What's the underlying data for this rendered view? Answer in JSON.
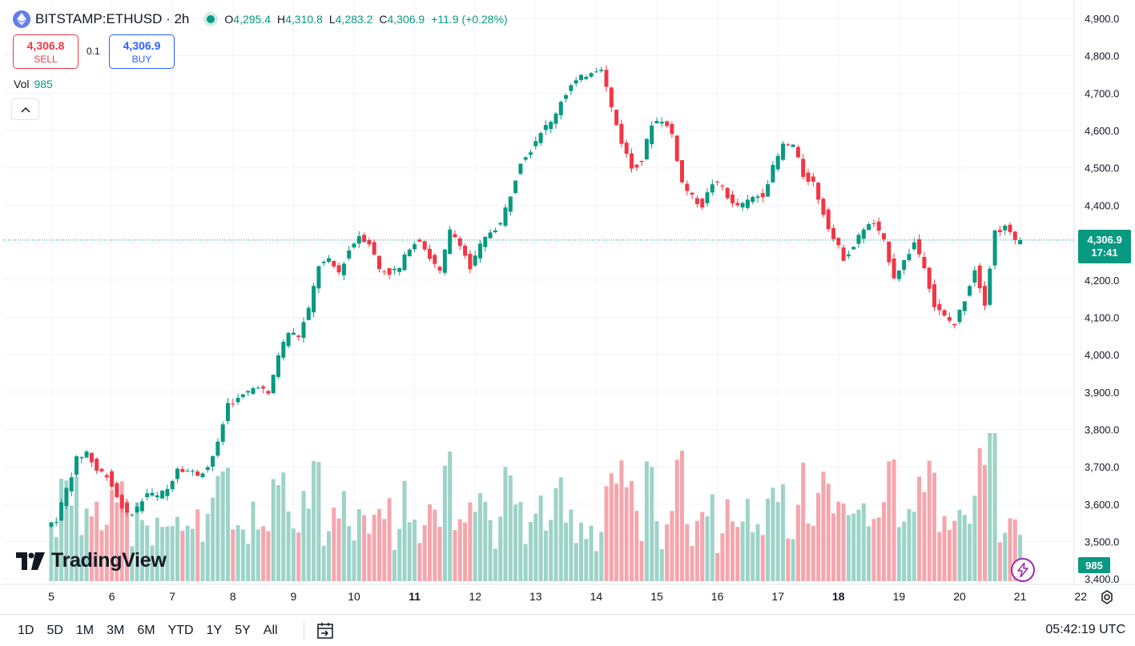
{
  "header": {
    "symbol": "BITSTAMP:ETHUSD · 2h",
    "open_label": "O",
    "open": "4,295.4",
    "high_label": "H",
    "high": "4,310.8",
    "low_label": "L",
    "low": "4,283.2",
    "close_label": "C",
    "close": "4,306.9",
    "change": "+11.9 (+0.28%)"
  },
  "trade": {
    "sell_price": "4,306.8",
    "sell_label": "SELL",
    "qty": "0.1",
    "buy_price": "4,306.9",
    "buy_label": "BUY"
  },
  "volume_legend": {
    "label": "Vol",
    "value": "985"
  },
  "brand": "TradingView",
  "price_tag": {
    "price": "4,306.9",
    "countdown": "17:41"
  },
  "volume_tag": "985",
  "time_ranges": [
    "1D",
    "5D",
    "1M",
    "3M",
    "6M",
    "YTD",
    "1Y",
    "5Y",
    "All"
  ],
  "clock": "05:42:19 UTC",
  "colors": {
    "up": "#089981",
    "down": "#f23645",
    "up_vol": "#9dd3c8",
    "down_vol": "#f5a6ad",
    "grid": "#f0f3fa",
    "text": "#131722"
  },
  "chart_data": {
    "type": "candlestick",
    "symbol": "BITSTAMP:ETHUSD",
    "interval": "2h",
    "y_ticks": [
      "4,900.0",
      "4,800.0",
      "4,700.0",
      "4,600.0",
      "4,500.0",
      "4,400.0",
      "4,300.0",
      "4,200.0",
      "4,100.0",
      "4,000.0",
      "3,900.0",
      "3,800.0",
      "3,700.0",
      "3,600.0",
      "3,500.0",
      "3,400.0"
    ],
    "y_range": [
      3400,
      4900
    ],
    "x_ticks": [
      {
        "label": "5",
        "hour": 0,
        "bold": false
      },
      {
        "label": "6",
        "hour": 24,
        "bold": false
      },
      {
        "label": "7",
        "hour": 48,
        "bold": false
      },
      {
        "label": "8",
        "hour": 72,
        "bold": false
      },
      {
        "label": "9",
        "hour": 96,
        "bold": false
      },
      {
        "label": "10",
        "hour": 120,
        "bold": false
      },
      {
        "label": "11",
        "hour": 144,
        "bold": true
      },
      {
        "label": "12",
        "hour": 168,
        "bold": false
      },
      {
        "label": "13",
        "hour": 192,
        "bold": false
      },
      {
        "label": "14",
        "hour": 216,
        "bold": false
      },
      {
        "label": "15",
        "hour": 240,
        "bold": false
      },
      {
        "label": "16",
        "hour": 264,
        "bold": false
      },
      {
        "label": "17",
        "hour": 288,
        "bold": false
      },
      {
        "label": "18",
        "hour": 312,
        "bold": true
      },
      {
        "label": "19",
        "hour": 336,
        "bold": false
      },
      {
        "label": "20",
        "hour": 360,
        "bold": false
      },
      {
        "label": "21",
        "hour": 384,
        "bold": false
      },
      {
        "label": "22",
        "hour": 408,
        "bold": false
      }
    ],
    "last_price": 4306.9,
    "volume_max": 5000,
    "anchors": [
      [
        0,
        3540
      ],
      [
        4,
        3560
      ],
      [
        8,
        3640
      ],
      [
        12,
        3720
      ],
      [
        16,
        3740
      ],
      [
        20,
        3690
      ],
      [
        24,
        3680
      ],
      [
        28,
        3620
      ],
      [
        32,
        3570
      ],
      [
        36,
        3590
      ],
      [
        40,
        3630
      ],
      [
        44,
        3620
      ],
      [
        48,
        3640
      ],
      [
        52,
        3700
      ],
      [
        56,
        3690
      ],
      [
        60,
        3680
      ],
      [
        64,
        3700
      ],
      [
        68,
        3760
      ],
      [
        72,
        3870
      ],
      [
        76,
        3880
      ],
      [
        80,
        3900
      ],
      [
        84,
        3920
      ],
      [
        88,
        3890
      ],
      [
        92,
        4000
      ],
      [
        96,
        4060
      ],
      [
        100,
        4050
      ],
      [
        104,
        4120
      ],
      [
        108,
        4240
      ],
      [
        112,
        4250
      ],
      [
        116,
        4220
      ],
      [
        120,
        4280
      ],
      [
        124,
        4320
      ],
      [
        128,
        4300
      ],
      [
        132,
        4230
      ],
      [
        136,
        4220
      ],
      [
        140,
        4230
      ],
      [
        144,
        4290
      ],
      [
        148,
        4310
      ],
      [
        152,
        4260
      ],
      [
        156,
        4220
      ],
      [
        160,
        4330
      ],
      [
        164,
        4300
      ],
      [
        168,
        4230
      ],
      [
        172,
        4290
      ],
      [
        176,
        4330
      ],
      [
        180,
        4350
      ],
      [
        184,
        4430
      ],
      [
        188,
        4520
      ],
      [
        192,
        4550
      ],
      [
        196,
        4600
      ],
      [
        200,
        4620
      ],
      [
        204,
        4680
      ],
      [
        208,
        4720
      ],
      [
        212,
        4740
      ],
      [
        216,
        4760
      ],
      [
        220,
        4770
      ],
      [
        224,
        4660
      ],
      [
        228,
        4570
      ],
      [
        232,
        4500
      ],
      [
        236,
        4520
      ],
      [
        240,
        4620
      ],
      [
        244,
        4630
      ],
      [
        248,
        4590
      ],
      [
        252,
        4460
      ],
      [
        256,
        4420
      ],
      [
        260,
        4400
      ],
      [
        264,
        4460
      ],
      [
        268,
        4450
      ],
      [
        272,
        4400
      ],
      [
        276,
        4400
      ],
      [
        280,
        4420
      ],
      [
        284,
        4430
      ],
      [
        288,
        4500
      ],
      [
        292,
        4560
      ],
      [
        296,
        4560
      ],
      [
        300,
        4480
      ],
      [
        304,
        4460
      ],
      [
        308,
        4380
      ],
      [
        312,
        4310
      ],
      [
        316,
        4260
      ],
      [
        320,
        4290
      ],
      [
        324,
        4340
      ],
      [
        328,
        4350
      ],
      [
        332,
        4300
      ],
      [
        336,
        4210
      ],
      [
        340,
        4250
      ],
      [
        344,
        4300
      ],
      [
        348,
        4240
      ],
      [
        352,
        4130
      ],
      [
        356,
        4100
      ],
      [
        360,
        4080
      ],
      [
        364,
        4150
      ],
      [
        368,
        4230
      ],
      [
        372,
        4140
      ],
      [
        376,
        4330
      ],
      [
        380,
        4340
      ],
      [
        384,
        4307
      ]
    ],
    "annotations": [
      "Price line at 4,306.9"
    ]
  }
}
